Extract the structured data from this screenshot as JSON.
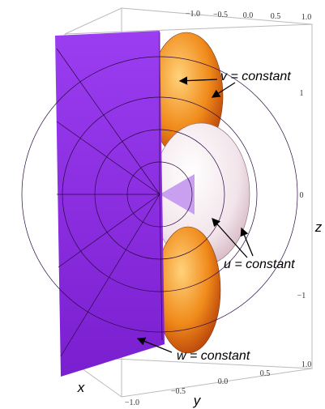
{
  "top_axis": {
    "ticks": [
      "−1.0",
      "−0.5",
      "0.0",
      "0.5",
      "1.0"
    ]
  },
  "vertical_axis": {
    "label": "z",
    "ticks": [
      "1",
      "0",
      "−1"
    ]
  },
  "bottom_axis": {
    "label": "y",
    "ticks": [
      "−1.0",
      "−0.5",
      "0.0",
      "0.5",
      "1.0"
    ]
  },
  "x_axis": {
    "label": "x"
  },
  "annotations": [
    "v = constant",
    "u = constant",
    "w = constant"
  ]
}
